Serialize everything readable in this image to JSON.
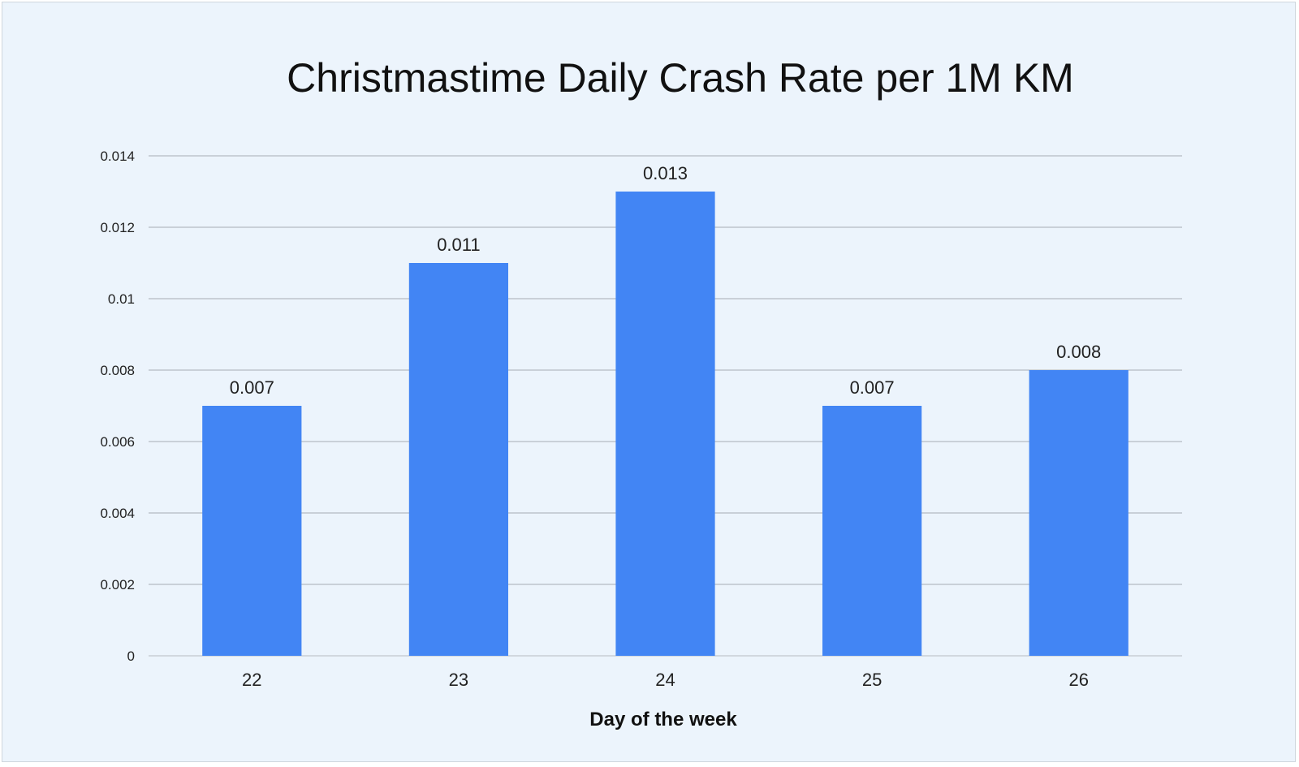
{
  "chart_data": {
    "type": "bar",
    "title": "Christmastime Daily Crash Rate per 1M KM",
    "xlabel": "Day of the week",
    "ylabel": "",
    "categories": [
      "22",
      "23",
      "24",
      "25",
      "26"
    ],
    "values": [
      0.007,
      0.011,
      0.013,
      0.007,
      0.008
    ],
    "data_labels": [
      "0.007",
      "0.011",
      "0.013",
      "0.007",
      "0.008"
    ],
    "y_ticks": [
      0,
      0.002,
      0.004,
      0.006,
      0.008,
      0.01,
      0.012,
      0.014
    ],
    "y_tick_labels": [
      "0",
      "0.002",
      "0.004",
      "0.006",
      "0.008",
      "0.01",
      "0.012",
      "0.014"
    ],
    "ylim": [
      0,
      0.014
    ],
    "grid": true,
    "legend": "none",
    "colors": {
      "background": "#ecf4fc",
      "bar": "#4285f4",
      "grid": "#a6acb3",
      "baseline": "#c8ced5"
    }
  }
}
